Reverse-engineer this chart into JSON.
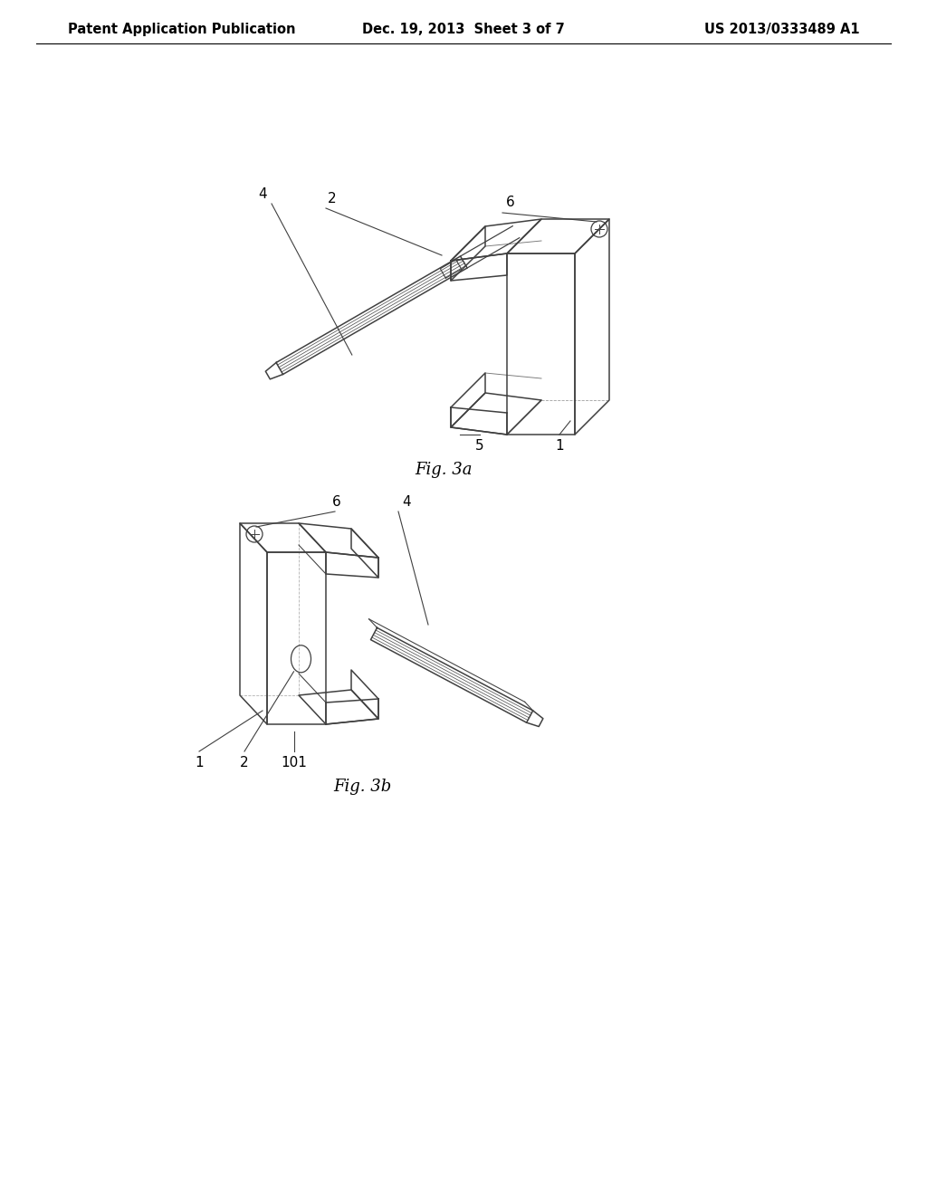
{
  "background_color": "#ffffff",
  "header_left": "Patent Application Publication",
  "header_center": "Dec. 19, 2013  Sheet 3 of 7",
  "header_right": "US 2013/0333489 A1",
  "fig3a_label": "Fig. 3a",
  "fig3b_label": "Fig. 3b",
  "lc": "#404040",
  "font_size_header": 10.5,
  "font_size_fig_label": 13,
  "font_size_ann": 11
}
